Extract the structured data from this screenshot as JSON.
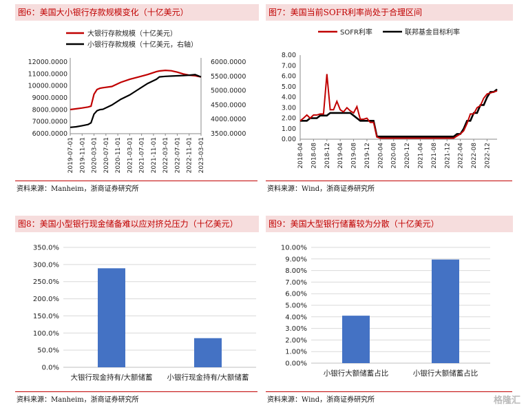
{
  "watermark": "格隆汇",
  "charts": [
    {
      "title": "图6：美国大小银行存款规模变化（十亿美元）",
      "source": "资料来源：Manheim，浙商证券研究所",
      "chart_data": {
        "type": "line",
        "dual_axis": true,
        "series": [
          {
            "name": "大银行存款规模（十亿美元）",
            "axis": "left",
            "color": "#c00000",
            "x": [
              "2019-07",
              "2019-09",
              "2019-11",
              "2020-01",
              "2020-02",
              "2020-03",
              "2020-04",
              "2020-05",
              "2020-06",
              "2020-09",
              "2020-12",
              "2021-03",
              "2021-06",
              "2021-09",
              "2021-12",
              "2022-01",
              "2022-03",
              "2022-05",
              "2022-07",
              "2022-09",
              "2022-11",
              "2023-01",
              "2023-03"
            ],
            "values": [
              8020,
              8080,
              8150,
              8230,
              8300,
              9300,
              9700,
              9800,
              9850,
              9950,
              10300,
              10550,
              10750,
              10950,
              11200,
              11250,
              11300,
              11270,
              11150,
              11000,
              10900,
              10850,
              10750
            ]
          },
          {
            "name": "小银行存款规模（十亿美元，右轴）",
            "axis": "right",
            "color": "#000000",
            "x": [
              "2019-07",
              "2019-09",
              "2019-11",
              "2020-01",
              "2020-02",
              "2020-03",
              "2020-04",
              "2020-05",
              "2020-06",
              "2020-09",
              "2020-12",
              "2021-03",
              "2021-06",
              "2021-09",
              "2021-12",
              "2022-01",
              "2022-03",
              "2022-05",
              "2022-07",
              "2022-09",
              "2022-11",
              "2023-01",
              "2023-03"
            ],
            "values": [
              3720,
              3740,
              3780,
              3820,
              3880,
              4180,
              4300,
              4340,
              4350,
              4500,
              4700,
              4850,
              5050,
              5250,
              5400,
              5480,
              5500,
              5510,
              5520,
              5530,
              5540,
              5560,
              5480
            ]
          }
        ],
        "y_left": {
          "min": 6000,
          "max": 12000,
          "ticks": [
            "6000.0000",
            "7000.0000",
            "8000.0000",
            "9000.0000",
            "10000.0000",
            "11000.0000",
            "12000.0000"
          ]
        },
        "y_right": {
          "min": 3500,
          "max": 6000,
          "ticks": [
            "3500.0000",
            "4000.0000",
            "4500.0000",
            "5000.0000",
            "5500.0000",
            "6000.0000"
          ]
        },
        "x_ticks": [
          "2019-07-01",
          "2019-11-01",
          "2020-03-01",
          "2020-07-01",
          "2020-11-01",
          "2021-03-01",
          "2021-07-01",
          "2021-11-01",
          "2022-03-01",
          "2022-07-01",
          "2022-11-01",
          "2023-03-01"
        ],
        "legend": [
          "大银行存款规模（十亿美元）",
          "小银行存款规模（十亿美元，右轴）"
        ],
        "legend_position": "top-left"
      }
    },
    {
      "title": "图7：美国当前SOFR利率尚处于合理区间",
      "source": "资料来源：Wind，浙商证券研究所",
      "chart_data": {
        "type": "line",
        "series": [
          {
            "name": "SOFR利率",
            "color": "#c00000",
            "x": [
              "2018-04",
              "2018-05",
              "2018-06",
              "2018-07",
              "2018-08",
              "2018-09",
              "2018-10",
              "2018-11",
              "2018-12",
              "2019-01",
              "2019-02",
              "2019-03",
              "2019-04",
              "2019-05",
              "2019-06",
              "2019-07",
              "2019-08",
              "2019-09",
              "2019-10",
              "2019-11",
              "2019-12",
              "2020-01",
              "2020-02",
              "2020-03",
              "2020-04",
              "2021-06",
              "2021-12",
              "2022-01",
              "2022-02",
              "2022-03",
              "2022-04",
              "2022-05",
              "2022-06",
              "2022-07",
              "2022-08",
              "2022-09",
              "2022-10",
              "2022-11",
              "2022-12",
              "2023-01",
              "2023-02",
              "2023-03"
            ],
            "values": [
              1.75,
              2.0,
              2.3,
              2.0,
              2.3,
              2.3,
              2.4,
              2.4,
              6.2,
              2.8,
              2.8,
              3.6,
              2.8,
              2.6,
              3.0,
              2.7,
              2.5,
              3.1,
              1.9,
              1.9,
              2.0,
              1.6,
              1.6,
              0.2,
              0.1,
              0.1,
              0.1,
              0.1,
              0.1,
              0.3,
              0.5,
              0.8,
              1.5,
              2.4,
              2.4,
              3.0,
              3.2,
              3.9,
              4.3,
              4.4,
              4.5,
              4.6
            ]
          },
          {
            "name": "联邦基金目标利率",
            "color": "#000000",
            "x": [
              "2018-04",
              "2018-06",
              "2018-07",
              "2018-09",
              "2018-10",
              "2018-12",
              "2019-01",
              "2019-07",
              "2019-08",
              "2019-09",
              "2019-10",
              "2019-11",
              "2020-02",
              "2020-03",
              "2020-04",
              "2022-02",
              "2022-03",
              "2022-04",
              "2022-05",
              "2022-06",
              "2022-07",
              "2022-08",
              "2022-09",
              "2022-10",
              "2022-11",
              "2022-12",
              "2023-01",
              "2023-02",
              "2023-03"
            ],
            "values": [
              1.75,
              1.75,
              2.0,
              2.0,
              2.25,
              2.25,
              2.5,
              2.5,
              2.25,
              2.0,
              1.75,
              1.75,
              1.75,
              0.25,
              0.25,
              0.25,
              0.5,
              0.5,
              1.0,
              1.75,
              1.75,
              2.5,
              2.5,
              3.25,
              3.25,
              4.0,
              4.5,
              4.5,
              4.75
            ]
          }
        ],
        "y": {
          "min": 0,
          "max": 8,
          "ticks": [
            "0.00",
            "1.00",
            "2.00",
            "3.00",
            "4.00",
            "5.00",
            "6.00",
            "7.00",
            "8.00"
          ]
        },
        "x_ticks": [
          "2018-04",
          "2018-08",
          "2018-12",
          "2019-04",
          "2019-08",
          "2019-12",
          "2020-04",
          "2020-08",
          "2020-12",
          "2021-04",
          "2021-08",
          "2021-12",
          "2022-04",
          "2022-08",
          "2022-12"
        ],
        "legend": [
          "SOFR利率",
          "联邦基金目标利率"
        ],
        "legend_position": "top"
      }
    },
    {
      "title": "图8：美国小型银行现金储备难以应对挤兑压力（十亿美元）",
      "source": "资料来源：Manheim，浙商证券研究所",
      "chart_data": {
        "type": "bar",
        "categories": [
          "大银行现金持有/大额储蓄",
          "小银行现金持有/大额储蓄"
        ],
        "values": [
          289,
          85
        ],
        "y": {
          "min": 0,
          "max": 350,
          "ticks": [
            "0.0%",
            "50.0%",
            "100.0%",
            "150.0%",
            "200.0%",
            "250.0%",
            "300.0%",
            "350.0%"
          ]
        },
        "color": "#4472c4"
      }
    },
    {
      "title": "图9：美国大型银行储蓄较为分散（十亿美元）",
      "source": "资料来源：Wind，浙商证券研究所",
      "chart_data": {
        "type": "bar",
        "categories": [
          "小银行大额储蓄占比",
          "小银行大额储蓄占比"
        ],
        "values": [
          4.1,
          8.95
        ],
        "y": {
          "min": 0,
          "max": 10,
          "ticks": [
            "0.00%",
            "1.00%",
            "2.00%",
            "3.00%",
            "4.00%",
            "5.00%",
            "6.00%",
            "7.00%",
            "8.00%",
            "9.00%",
            "10.00%"
          ]
        },
        "color": "#4472c4"
      }
    }
  ]
}
